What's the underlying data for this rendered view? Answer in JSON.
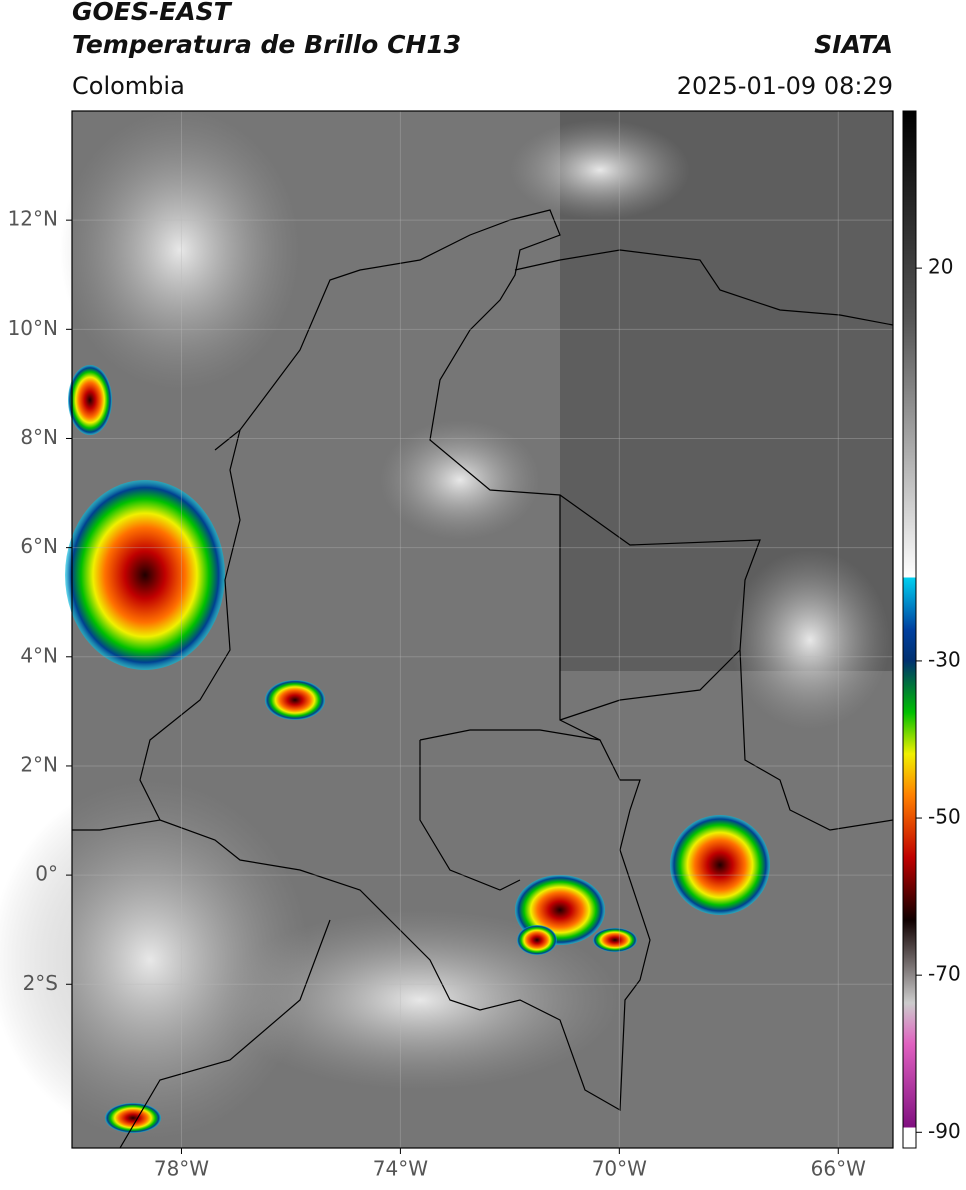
{
  "header": {
    "title": "GOES-EAST",
    "subtitle": "Temperatura de Brillo CH13",
    "region": "Colombia",
    "source": "SIATA",
    "timestamp": "2025-01-09 08:29"
  },
  "map": {
    "xlim": [
      -80,
      -65
    ],
    "ylim": [
      -5,
      14
    ],
    "xticks": [
      {
        "value": -78,
        "label": "78°W"
      },
      {
        "value": -74,
        "label": "74°W"
      },
      {
        "value": -70,
        "label": "70°W"
      },
      {
        "value": -66,
        "label": "66°W"
      }
    ],
    "yticks": [
      {
        "value": 12,
        "label": "12°N"
      },
      {
        "value": 10,
        "label": "10°N"
      },
      {
        "value": 8,
        "label": "8°N"
      },
      {
        "value": 6,
        "label": "6°N"
      },
      {
        "value": 4,
        "label": "4°N"
      },
      {
        "value": 2,
        "label": "2°N"
      },
      {
        "value": 0,
        "label": "0°"
      },
      {
        "value": -2,
        "label": "2°S"
      }
    ],
    "grid": true
  },
  "colorbar": {
    "clim": [
      -92,
      40
    ],
    "ticks": [
      20,
      -30,
      -50,
      -70,
      -90
    ]
  }
}
